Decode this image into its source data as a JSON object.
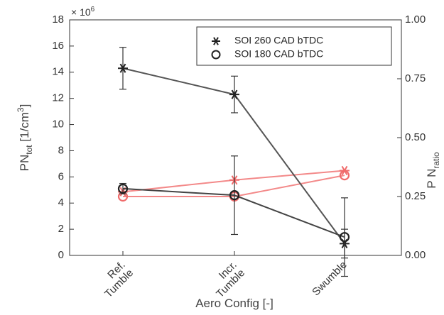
{
  "chart_data": {
    "type": "line",
    "categories": [
      "Ref. Tumble",
      "Incr. Tumble",
      "Swumble"
    ],
    "category_lines": [
      [
        "Ref.",
        "Tumble"
      ],
      [
        "Incr.",
        "Tumble"
      ],
      [
        "Swumble"
      ]
    ],
    "xlabel": "Aero Config [-]",
    "ylabel_left": {
      "main": "PN",
      "sub": "tot",
      "mid": " [1/cm",
      "sup": "3",
      "end": "]"
    },
    "ylabel_right": {
      "main": "P N",
      "sub": "ratio"
    },
    "left_axis": {
      "ylim": [
        0,
        18
      ],
      "ticks": [
        0,
        2,
        4,
        6,
        8,
        10,
        12,
        14,
        16,
        18
      ],
      "tick_labels": [
        "0",
        "2",
        "4",
        "6",
        "8",
        "10",
        "12",
        "14",
        "16",
        "18"
      ],
      "multiplier_label": {
        "base": "× 10",
        "exp": "6"
      }
    },
    "right_axis": {
      "ylim": [
        0,
        1
      ],
      "ticks": [
        0,
        0.25,
        0.5,
        0.75,
        1
      ],
      "tick_labels": [
        "0.00",
        "0.25",
        "0.50",
        "0.75",
        "1.00"
      ]
    },
    "legend": {
      "position": "top-right",
      "entries": [
        {
          "label": "SOI 260 CAD bTDC",
          "marker": "asterisk"
        },
        {
          "label": "SOI 180 CAD bTDC",
          "marker": "circle"
        }
      ]
    },
    "series": [
      {
        "axis": "left",
        "marker": "asterisk",
        "color": "#555555",
        "values": [
          14.3,
          12.3,
          0.9
        ],
        "err": [
          1.6,
          1.4,
          1.1
        ]
      },
      {
        "axis": "left",
        "marker": "circle",
        "color": "#444444",
        "values": [
          5.1,
          4.6,
          1.4
        ],
        "err": [
          0.4,
          3.0,
          3.0
        ]
      },
      {
        "axis": "right",
        "marker": "asterisk",
        "color": "#f06b6b",
        "values": [
          0.27,
          0.32,
          0.36
        ],
        "err": [
          0,
          0,
          0
        ]
      },
      {
        "axis": "right",
        "marker": "circle",
        "color": "#f06b6b",
        "values": [
          0.25,
          0.25,
          0.34
        ],
        "err": [
          0,
          0,
          0
        ]
      }
    ],
    "grid": false
  }
}
